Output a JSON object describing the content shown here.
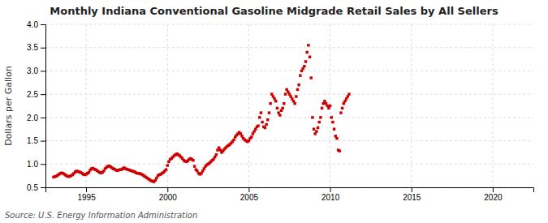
{
  "chart_data": {
    "type": "scatter",
    "title": "Monthly Indiana Conventional Gasoline Midgrade Retail Sales by All Sellers",
    "ylabel": "Dollars per Gallon",
    "source": "Source: U.S. Energy Information Administration",
    "color": "#cc0000",
    "marker": "square",
    "grid": true,
    "xlim": [
      1992.5,
      2022.5
    ],
    "ylim": [
      0.5,
      4.0
    ],
    "xticks": [
      1995,
      2000,
      2005,
      2010,
      2015,
      2020
    ],
    "yticks": [
      0.5,
      {
        "value": 1.0,
        "label": "1.0"
      },
      1.5,
      {
        "value": 2.0,
        "label": "2.0"
      },
      2.5,
      {
        "value": 3.0,
        "label": "3.0"
      },
      3.5,
      {
        "value": 4.0,
        "label": "4.0"
      }
    ],
    "x": [
      1993.0,
      1993.083,
      1993.167,
      1993.25,
      1993.333,
      1993.417,
      1993.5,
      1993.583,
      1993.667,
      1993.75,
      1993.833,
      1993.917,
      1994.0,
      1994.083,
      1994.167,
      1994.25,
      1994.333,
      1994.417,
      1994.5,
      1994.583,
      1994.667,
      1994.75,
      1994.833,
      1994.917,
      1995.0,
      1995.083,
      1995.167,
      1995.25,
      1995.333,
      1995.417,
      1995.5,
      1995.583,
      1995.667,
      1995.75,
      1995.833,
      1995.917,
      1996.0,
      1996.083,
      1996.167,
      1996.25,
      1996.333,
      1996.417,
      1996.5,
      1996.583,
      1996.667,
      1996.75,
      1996.833,
      1996.917,
      1997.0,
      1997.083,
      1997.167,
      1997.25,
      1997.333,
      1997.417,
      1997.5,
      1997.583,
      1997.667,
      1997.75,
      1997.833,
      1997.917,
      1998.0,
      1998.083,
      1998.167,
      1998.25,
      1998.333,
      1998.417,
      1998.5,
      1998.583,
      1998.667,
      1998.75,
      1998.833,
      1998.917,
      1999.0,
      1999.083,
      1999.167,
      1999.25,
      1999.333,
      1999.417,
      1999.5,
      1999.583,
      1999.667,
      1999.75,
      1999.833,
      1999.917,
      2000.0,
      2000.083,
      2000.167,
      2000.25,
      2000.333,
      2000.417,
      2000.5,
      2000.583,
      2000.667,
      2000.75,
      2000.833,
      2000.917,
      2001.0,
      2001.083,
      2001.167,
      2001.25,
      2001.333,
      2001.417,
      2001.5,
      2001.583,
      2001.667,
      2001.75,
      2001.833,
      2001.917,
      2002.0,
      2002.083,
      2002.167,
      2002.25,
      2002.333,
      2002.417,
      2002.5,
      2002.583,
      2002.667,
      2002.75,
      2002.833,
      2002.917,
      2003.0,
      2003.083,
      2003.167,
      2003.25,
      2003.333,
      2003.417,
      2003.5,
      2003.583,
      2003.667,
      2003.75,
      2003.833,
      2003.917,
      2004.0,
      2004.083,
      2004.167,
      2004.25,
      2004.333,
      2004.417,
      2004.5,
      2004.583,
      2004.667,
      2004.75,
      2004.833,
      2004.917,
      2005.0,
      2005.083,
      2005.167,
      2005.25,
      2005.333,
      2005.417,
      2005.5,
      2005.583,
      2005.667,
      2005.75,
      2005.833,
      2005.917,
      2006.0,
      2006.083,
      2006.167,
      2006.25,
      2006.333,
      2006.417,
      2006.5,
      2006.583,
      2006.667,
      2006.75,
      2006.833,
      2006.917,
      2007.0,
      2007.083,
      2007.167,
      2007.25,
      2007.333,
      2007.417,
      2007.5,
      2007.583,
      2007.667,
      2007.75,
      2007.833,
      2007.917,
      2008.0,
      2008.083,
      2008.167,
      2008.25,
      2008.333,
      2008.417,
      2008.5,
      2008.583,
      2008.667,
      2008.75,
      2008.833,
      2008.917,
      2009.0,
      2009.083,
      2009.167,
      2009.25,
      2009.333,
      2009.417,
      2009.5,
      2009.583,
      2009.667,
      2009.75,
      2009.833,
      2009.917,
      2010.0,
      2010.083,
      2010.167,
      2010.25,
      2010.333,
      2010.417,
      2010.5,
      2010.583,
      2010.667,
      2010.75,
      2010.833,
      2010.917,
      2011.0,
      2011.083,
      2011.167
    ],
    "values": [
      0.72,
      0.73,
      0.74,
      0.76,
      0.78,
      0.8,
      0.81,
      0.8,
      0.78,
      0.76,
      0.74,
      0.73,
      0.74,
      0.75,
      0.77,
      0.8,
      0.83,
      0.85,
      0.84,
      0.83,
      0.82,
      0.8,
      0.78,
      0.77,
      0.78,
      0.8,
      0.82,
      0.87,
      0.9,
      0.91,
      0.89,
      0.88,
      0.86,
      0.84,
      0.82,
      0.81,
      0.82,
      0.85,
      0.9,
      0.93,
      0.95,
      0.96,
      0.94,
      0.92,
      0.9,
      0.89,
      0.87,
      0.86,
      0.87,
      0.88,
      0.88,
      0.9,
      0.92,
      0.9,
      0.89,
      0.88,
      0.87,
      0.86,
      0.85,
      0.84,
      0.83,
      0.81,
      0.8,
      0.8,
      0.79,
      0.78,
      0.76,
      0.74,
      0.72,
      0.7,
      0.68,
      0.66,
      0.64,
      0.63,
      0.62,
      0.65,
      0.7,
      0.75,
      0.77,
      0.78,
      0.8,
      0.82,
      0.85,
      0.88,
      0.97,
      1.05,
      1.1,
      1.12,
      1.15,
      1.18,
      1.2,
      1.22,
      1.2,
      1.18,
      1.15,
      1.12,
      1.08,
      1.06,
      1.05,
      1.07,
      1.1,
      1.12,
      1.1,
      1.08,
      0.95,
      0.88,
      0.85,
      0.8,
      0.78,
      0.8,
      0.85,
      0.9,
      0.95,
      0.98,
      1.0,
      1.02,
      1.05,
      1.08,
      1.1,
      1.15,
      1.2,
      1.3,
      1.35,
      1.3,
      1.25,
      1.28,
      1.32,
      1.35,
      1.38,
      1.4,
      1.42,
      1.45,
      1.48,
      1.52,
      1.58,
      1.62,
      1.65,
      1.68,
      1.65,
      1.6,
      1.55,
      1.52,
      1.5,
      1.48,
      1.5,
      1.55,
      1.58,
      1.65,
      1.7,
      1.75,
      1.8,
      1.82,
      2.0,
      2.1,
      1.9,
      1.8,
      1.78,
      1.85,
      1.95,
      2.1,
      2.3,
      2.5,
      2.45,
      2.4,
      2.35,
      2.2,
      2.1,
      2.05,
      2.15,
      2.2,
      2.3,
      2.5,
      2.6,
      2.55,
      2.5,
      2.45,
      2.4,
      2.35,
      2.3,
      2.45,
      2.6,
      2.7,
      2.9,
      3.0,
      3.05,
      3.1,
      3.2,
      3.4,
      3.55,
      3.3,
      2.85,
      2.0,
      1.75,
      1.65,
      1.7,
      1.78,
      1.9,
      2.0,
      2.2,
      2.3,
      2.35,
      2.3,
      2.25,
      2.2,
      2.25,
      2.0,
      1.9,
      1.75,
      1.6,
      1.55,
      1.3,
      1.28,
      2.1,
      2.2,
      2.3,
      2.35,
      2.4,
      2.45,
      2.5
    ]
  }
}
